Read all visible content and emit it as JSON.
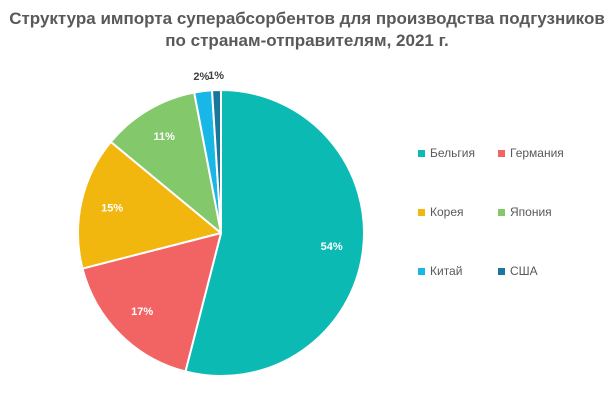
{
  "chart_data": {
    "type": "pie",
    "title_lines": [
      "Структура импорта суперабсорбентов для производства подгузников",
      "по странам-отправителям, 2021 г."
    ],
    "categories": [
      "Бельгия",
      "Германия",
      "Корея",
      "Япония",
      "Китай",
      "США"
    ],
    "values": [
      54,
      17,
      15,
      11,
      2,
      1
    ],
    "labels": [
      "54%",
      "17%",
      "15%",
      "11%",
      "2%",
      "1%"
    ],
    "colors": [
      "#0BBAB2",
      "#F26363",
      "#F2B70F",
      "#84C86C",
      "#18B7E6",
      "#18779B"
    ],
    "legend_position": "right"
  }
}
